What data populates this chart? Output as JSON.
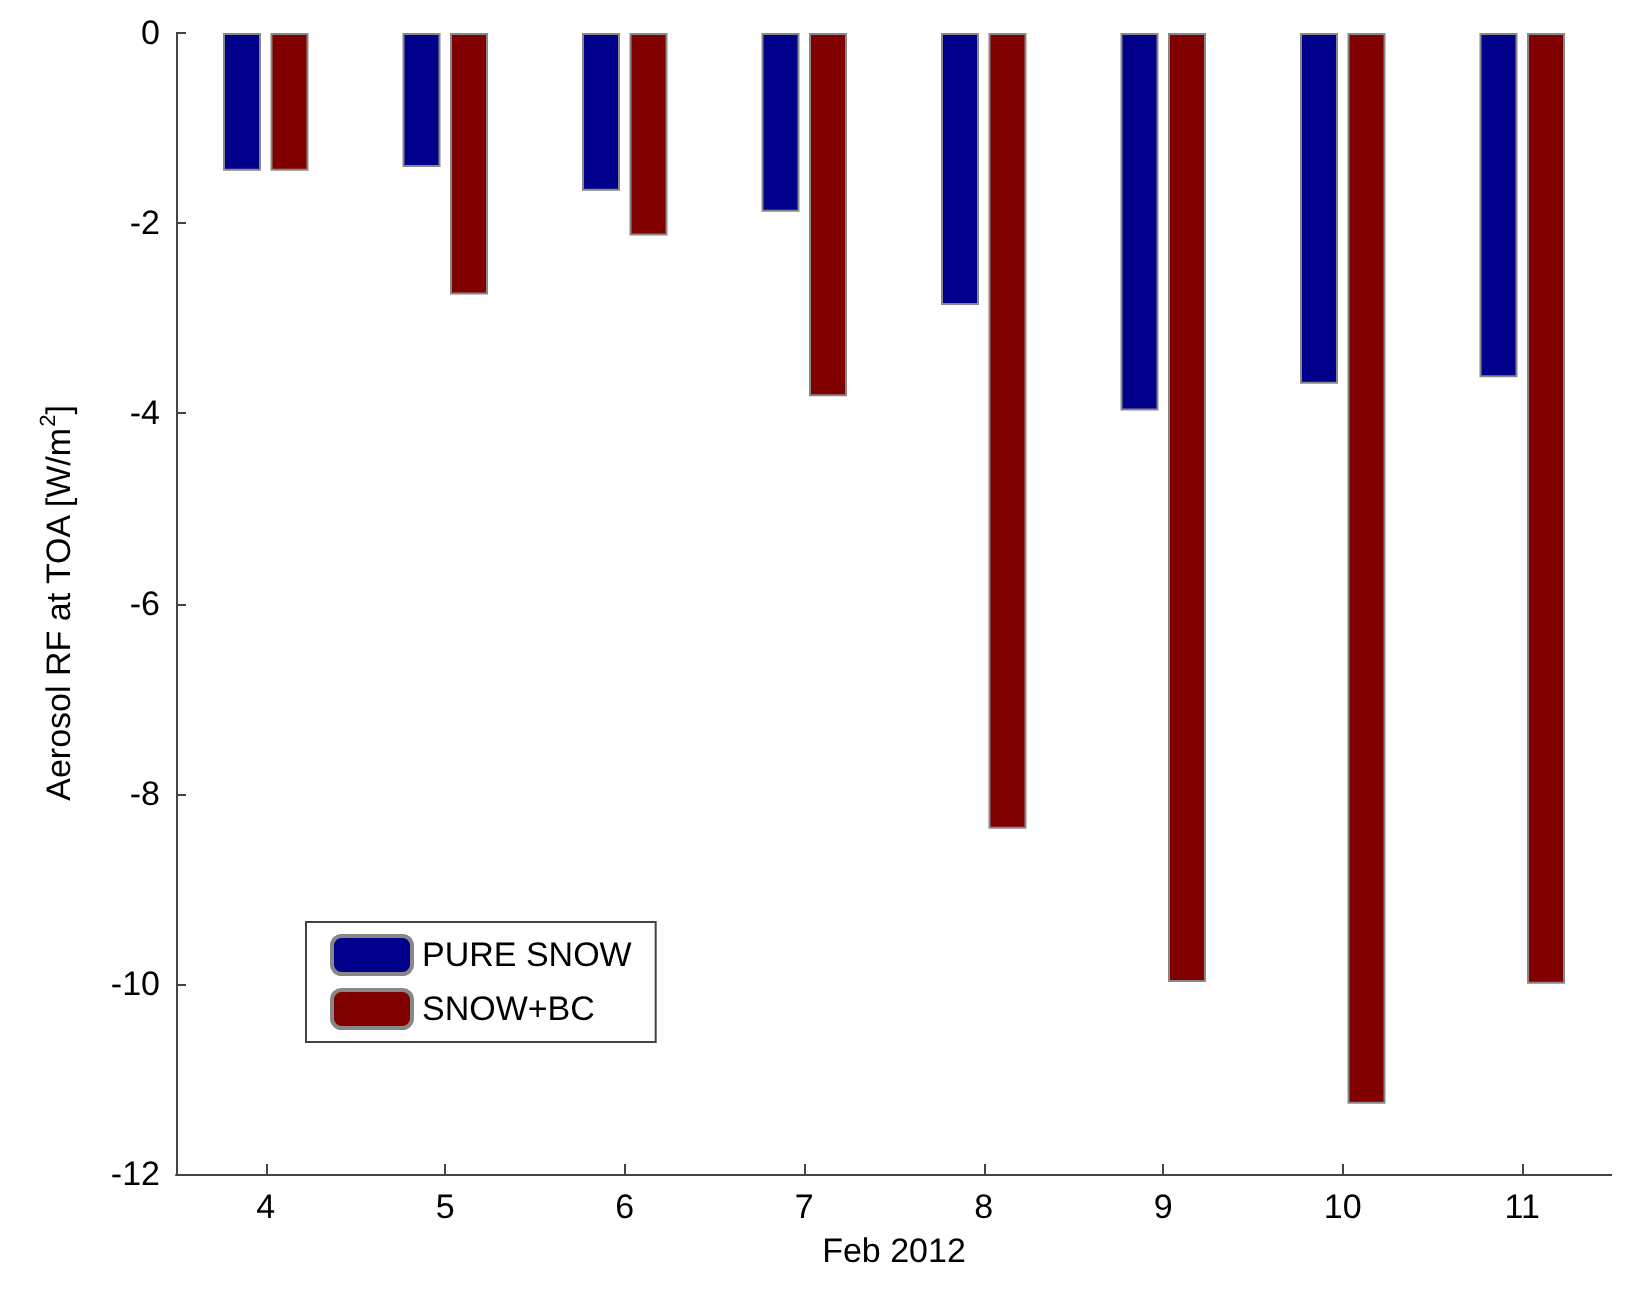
{
  "chart_data": {
    "type": "bar",
    "xlabel": "Feb 2012",
    "ylabel": "Aerosol RF at TOA [W/m$^{2}$]",
    "categories": [
      "4",
      "5",
      "6",
      "7",
      "8",
      "9",
      "10",
      "11"
    ],
    "series": [
      {
        "name": "PURE SNOW",
        "color": "#00008b",
        "values": [
          -1.45,
          -1.41,
          -1.66,
          -1.88,
          -2.86,
          -3.97,
          -3.69,
          -3.62
        ]
      },
      {
        "name": "SNOW+BC",
        "color": "#800000",
        "values": [
          -1.45,
          -2.75,
          -2.13,
          -3.82,
          -8.37,
          -9.98,
          -11.26,
          -10.0
        ]
      }
    ],
    "ylim": [
      -12,
      0
    ],
    "yticks": [
      -12,
      -10,
      -8,
      -6,
      -4,
      -2,
      0
    ],
    "grid": false,
    "legend": "bottom left"
  }
}
